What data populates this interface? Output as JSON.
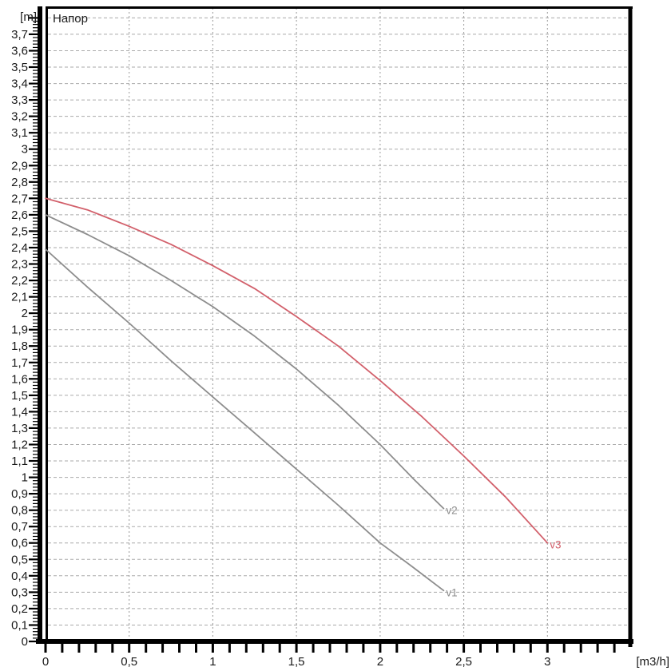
{
  "chart_data": {
    "type": "line",
    "title": "Напор",
    "x_axis": {
      "unit_label": "[m3/h]",
      "min": 0,
      "max": 3.5,
      "major_ticks": [
        0,
        0.5,
        1,
        1.5,
        2,
        2.5,
        3
      ],
      "major_tick_labels": [
        "0",
        "0,5",
        "1",
        "1,5",
        "2",
        "2,5",
        "3"
      ],
      "minor_tick_step": 0.1,
      "grid_step": 0.5
    },
    "y_axis": {
      "unit_label": "[m]",
      "min": 0,
      "max": 3.87,
      "major_tick_step": 0.1,
      "minor_tick_step": 0.02,
      "ruler_top_value": 3.8,
      "major_tick_labels": [
        "0",
        "0,1",
        "0,2",
        "0,3",
        "0,4",
        "0,5",
        "0,6",
        "0,7",
        "0,8",
        "0,9",
        "1",
        "1,1",
        "1,2",
        "1,3",
        "1,4",
        "1,5",
        "1,6",
        "1,7",
        "1,8",
        "1,9",
        "2",
        "2,1",
        "2,2",
        "2,3",
        "2,4",
        "2,5",
        "2,6",
        "2,7",
        "2,8",
        "2,9",
        "3",
        "3,1",
        "3,2",
        "3,3",
        "3,4",
        "3,5",
        "3,6",
        "3,7"
      ],
      "grid_step": 0.1
    },
    "grid": {
      "horizontal": true,
      "vertical": true
    },
    "series": [
      {
        "name": "v1",
        "color": "#8d8d8d",
        "label_color": "#8d8d8d",
        "points": [
          [
            0,
            2.39
          ],
          [
            0.25,
            2.16
          ],
          [
            0.5,
            1.94
          ],
          [
            0.75,
            1.71
          ],
          [
            1.0,
            1.49
          ],
          [
            1.25,
            1.27
          ],
          [
            1.5,
            1.05
          ],
          [
            1.75,
            0.83
          ],
          [
            2.0,
            0.6
          ],
          [
            2.2,
            0.45
          ],
          [
            2.38,
            0.31
          ]
        ]
      },
      {
        "name": "v2",
        "color": "#8d8d8d",
        "label_color": "#8d8d8d",
        "points": [
          [
            0,
            2.6
          ],
          [
            0.25,
            2.48
          ],
          [
            0.5,
            2.35
          ],
          [
            0.75,
            2.2
          ],
          [
            1.0,
            2.04
          ],
          [
            1.25,
            1.86
          ],
          [
            1.5,
            1.66
          ],
          [
            1.75,
            1.44
          ],
          [
            2.0,
            1.2
          ],
          [
            2.2,
            0.99
          ],
          [
            2.38,
            0.81
          ]
        ]
      },
      {
        "name": "v3",
        "color": "#d2606b",
        "label_color": "#d2606b",
        "points": [
          [
            0,
            2.7
          ],
          [
            0.25,
            2.63
          ],
          [
            0.5,
            2.53
          ],
          [
            0.75,
            2.42
          ],
          [
            1.0,
            2.29
          ],
          [
            1.25,
            2.15
          ],
          [
            1.5,
            1.98
          ],
          [
            1.75,
            1.8
          ],
          [
            2.0,
            1.59
          ],
          [
            2.25,
            1.37
          ],
          [
            2.5,
            1.13
          ],
          [
            2.75,
            0.88
          ],
          [
            3.0,
            0.6
          ]
        ]
      }
    ]
  },
  "colors": {
    "frame": "#000000",
    "axis": "#000000",
    "grid_horizontal": "#aaaaaa",
    "grid_vertical": "#9a9a9a",
    "tick_text": "#1a1a1a",
    "title_text": "#1c1c1c",
    "background": "#ffffff"
  }
}
